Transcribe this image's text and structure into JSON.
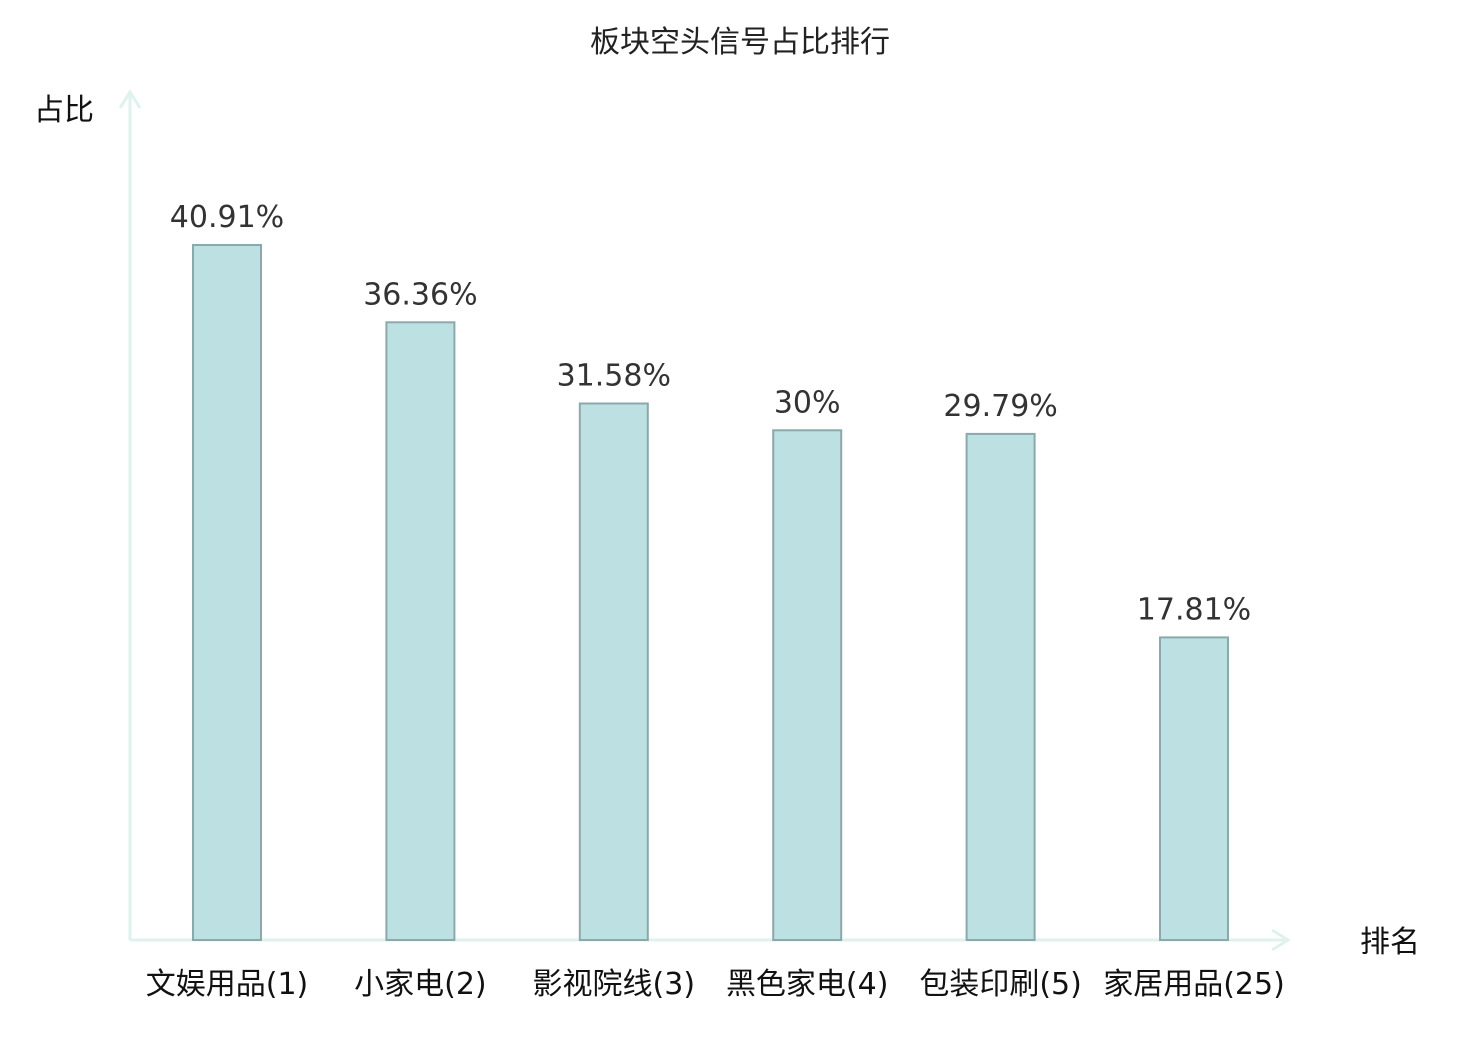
{
  "chart_data": {
    "type": "bar",
    "title": "板块空头信号占比排行",
    "ylabel": "占比",
    "xlabel": "排名",
    "categories": [
      "文娱用品(1)",
      "小家电(2)",
      "影视院线(3)",
      "黑色家电(4)",
      "包装印刷(5)",
      "家居用品(25)"
    ],
    "values": [
      40.91,
      36.36,
      31.58,
      30,
      29.79,
      17.81
    ],
    "value_labels": [
      "40.91%",
      "36.36%",
      "31.58%",
      "30%",
      "29.79%",
      "17.81%"
    ],
    "highlight_index": 5,
    "ylim": [
      0,
      45
    ],
    "grid": false,
    "colors": {
      "bar_fill": "#bde0e3",
      "bar_stroke": "#8aa9ac",
      "axis": "#dff2ee",
      "highlight_text": "#e02020",
      "text": "#111111"
    }
  }
}
